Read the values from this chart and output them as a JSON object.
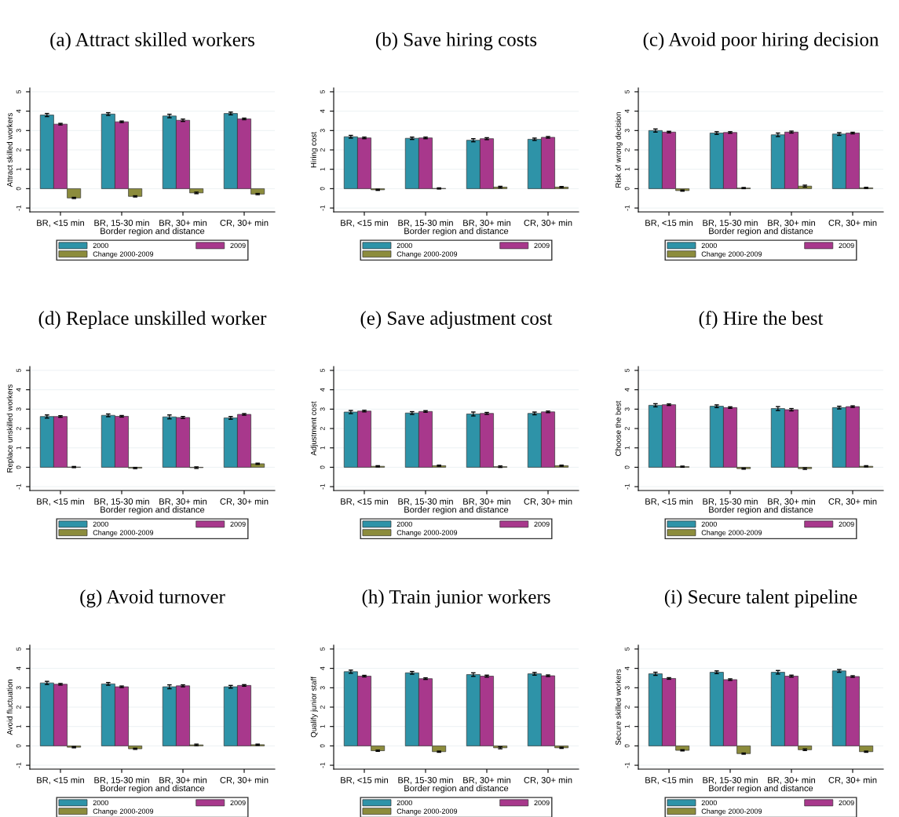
{
  "chart_data": [
    {
      "type": "bar",
      "title": "(a) Attract skilled workers",
      "xlabel": "Border region and distance",
      "ylabel": "Attract skilled workers",
      "categories": [
        "BR, <15 min",
        "BR, 15-30 min",
        "BR, 30+ min",
        "CR, 30+ min"
      ],
      "ylim": [
        -1.2,
        5.2
      ],
      "yticks": [
        -1,
        0,
        1,
        2,
        3,
        4,
        5
      ],
      "grid": "y",
      "legend": "bottom",
      "series": [
        {
          "name": "2000",
          "color": "#2e93a8",
          "values": [
            3.8,
            3.85,
            3.75,
            3.88
          ],
          "errors": [
            0.08,
            0.07,
            0.09,
            0.07
          ]
        },
        {
          "name": "2009",
          "color": "#a8388c",
          "values": [
            3.33,
            3.45,
            3.53,
            3.6
          ],
          "errors": [
            0.04,
            0.04,
            0.06,
            0.04
          ]
        },
        {
          "name": "Change 2000-2009",
          "color": "#8c8c3c",
          "values": [
            -0.48,
            -0.4,
            -0.22,
            -0.28
          ],
          "errors": [
            0.03,
            0.03,
            0.04,
            0.03
          ]
        }
      ]
    },
    {
      "type": "bar",
      "title": "(b) Save hiring costs",
      "xlabel": "Border region and distance",
      "ylabel": "Hiring cost",
      "categories": [
        "BR, <15 min",
        "BR, 15-30 min",
        "BR, 30+ min",
        "CR, 30+ min"
      ],
      "ylim": [
        -1.2,
        5.2
      ],
      "yticks": [
        -1,
        0,
        1,
        2,
        3,
        4,
        5
      ],
      "grid": "y",
      "legend": "bottom",
      "series": [
        {
          "name": "2000",
          "color": "#2e93a8",
          "values": [
            2.68,
            2.6,
            2.5,
            2.55
          ],
          "errors": [
            0.07,
            0.06,
            0.08,
            0.06
          ]
        },
        {
          "name": "2009",
          "color": "#a8388c",
          "values": [
            2.62,
            2.62,
            2.58,
            2.65
          ],
          "errors": [
            0.04,
            0.04,
            0.05,
            0.04
          ]
        },
        {
          "name": "Change 2000-2009",
          "color": "#8c8c3c",
          "values": [
            -0.06,
            0.01,
            0.08,
            0.08
          ],
          "errors": [
            0.03,
            0.03,
            0.04,
            0.03
          ]
        }
      ]
    },
    {
      "type": "bar",
      "title": "(c) Avoid poor hiring decision",
      "xlabel": "Border region and distance",
      "ylabel": "Risk of wrong decision",
      "categories": [
        "BR, <15 min",
        "BR, 15-30 min",
        "BR, 30+ min",
        "CR, 30+ min"
      ],
      "ylim": [
        -1.2,
        5.2
      ],
      "yticks": [
        -1,
        0,
        1,
        2,
        3,
        4,
        5
      ],
      "grid": "y",
      "legend": "bottom",
      "series": [
        {
          "name": "2000",
          "color": "#2e93a8",
          "values": [
            3.0,
            2.87,
            2.78,
            2.82
          ],
          "errors": [
            0.08,
            0.07,
            0.09,
            0.07
          ]
        },
        {
          "name": "2009",
          "color": "#a8388c",
          "values": [
            2.92,
            2.9,
            2.92,
            2.87
          ],
          "errors": [
            0.04,
            0.04,
            0.05,
            0.04
          ]
        },
        {
          "name": "Change 2000-2009",
          "color": "#8c8c3c",
          "values": [
            -0.1,
            0.03,
            0.13,
            0.04
          ],
          "errors": [
            0.03,
            0.03,
            0.05,
            0.03
          ]
        }
      ]
    },
    {
      "type": "bar",
      "title": "(d) Replace unskilled worker",
      "xlabel": "Border region and distance",
      "ylabel": "Replace unskilled workers",
      "categories": [
        "BR, <15 min",
        "BR, 15-30 min",
        "BR, 30+ min",
        "CR, 30+ min"
      ],
      "ylim": [
        -1.2,
        5.2
      ],
      "yticks": [
        -1,
        0,
        1,
        2,
        3,
        4,
        5
      ],
      "grid": "y",
      "legend": "bottom",
      "series": [
        {
          "name": "2000",
          "color": "#2e93a8",
          "values": [
            2.62,
            2.68,
            2.6,
            2.55
          ],
          "errors": [
            0.08,
            0.07,
            0.1,
            0.07
          ]
        },
        {
          "name": "2009",
          "color": "#a8388c",
          "values": [
            2.62,
            2.63,
            2.57,
            2.73
          ],
          "errors": [
            0.04,
            0.04,
            0.05,
            0.04
          ]
        },
        {
          "name": "Change 2000-2009",
          "color": "#8c8c3c",
          "values": [
            0.01,
            -0.04,
            -0.02,
            0.18
          ],
          "errors": [
            0.03,
            0.03,
            0.04,
            0.03
          ]
        }
      ]
    },
    {
      "type": "bar",
      "title": "(e) Save adjustment cost",
      "xlabel": "Border region and distance",
      "ylabel": "Adjustment cost",
      "categories": [
        "BR, <15 min",
        "BR, 15-30 min",
        "BR, 30+ min",
        "CR, 30+ min"
      ],
      "ylim": [
        -1.2,
        5.2
      ],
      "yticks": [
        -1,
        0,
        1,
        2,
        3,
        4,
        5
      ],
      "grid": "y",
      "legend": "bottom",
      "series": [
        {
          "name": "2000",
          "color": "#2e93a8",
          "values": [
            2.85,
            2.8,
            2.75,
            2.78
          ],
          "errors": [
            0.08,
            0.07,
            0.1,
            0.07
          ]
        },
        {
          "name": "2009",
          "color": "#a8388c",
          "values": [
            2.9,
            2.88,
            2.78,
            2.86
          ],
          "errors": [
            0.04,
            0.04,
            0.05,
            0.04
          ]
        },
        {
          "name": "Change 2000-2009",
          "color": "#8c8c3c",
          "values": [
            0.05,
            0.08,
            0.03,
            0.08
          ],
          "errors": [
            0.03,
            0.03,
            0.04,
            0.03
          ]
        }
      ]
    },
    {
      "type": "bar",
      "title": "(f) Hire the best",
      "xlabel": "Border region and distance",
      "ylabel": "Choose the best",
      "categories": [
        "BR, <15 min",
        "BR, 15-30 min",
        "BR, 30+ min",
        "CR, 30+ min"
      ],
      "ylim": [
        -1.2,
        5.2
      ],
      "yticks": [
        -1,
        0,
        1,
        2,
        3,
        4,
        5
      ],
      "grid": "y",
      "legend": "bottom",
      "series": [
        {
          "name": "2000",
          "color": "#2e93a8",
          "values": [
            3.2,
            3.15,
            3.03,
            3.08
          ],
          "errors": [
            0.08,
            0.07,
            0.1,
            0.07
          ]
        },
        {
          "name": "2009",
          "color": "#a8388c",
          "values": [
            3.23,
            3.08,
            2.97,
            3.13
          ],
          "errors": [
            0.04,
            0.04,
            0.06,
            0.04
          ]
        },
        {
          "name": "Change 2000-2009",
          "color": "#8c8c3c",
          "values": [
            0.03,
            -0.07,
            -0.07,
            0.05
          ],
          "errors": [
            0.03,
            0.03,
            0.04,
            0.03
          ]
        }
      ]
    },
    {
      "type": "bar",
      "title": "(g) Avoid turnover",
      "xlabel": "Border region and distance",
      "ylabel": "Avoid fluctuation",
      "categories": [
        "BR, <15 min",
        "BR, 15-30 min",
        "BR, 30+ min",
        "CR, 30+ min"
      ],
      "ylim": [
        -1.2,
        5.2
      ],
      "yticks": [
        -1,
        0,
        1,
        2,
        3,
        4,
        5
      ],
      "grid": "y",
      "legend": "bottom",
      "series": [
        {
          "name": "2000",
          "color": "#2e93a8",
          "values": [
            3.25,
            3.2,
            3.05,
            3.05
          ],
          "errors": [
            0.08,
            0.07,
            0.1,
            0.07
          ]
        },
        {
          "name": "2009",
          "color": "#a8388c",
          "values": [
            3.18,
            3.05,
            3.1,
            3.12
          ],
          "errors": [
            0.04,
            0.04,
            0.05,
            0.04
          ]
        },
        {
          "name": "Change 2000-2009",
          "color": "#8c8c3c",
          "values": [
            -0.07,
            -0.15,
            0.05,
            0.06
          ],
          "errors": [
            0.03,
            0.03,
            0.04,
            0.03
          ]
        }
      ]
    },
    {
      "type": "bar",
      "title": "(h) Train junior workers",
      "xlabel": "Border region and distance",
      "ylabel": "Qualify junior staff",
      "categories": [
        "BR, <15 min",
        "BR, 15-30 min",
        "BR, 30+ min",
        "CR, 30+ min"
      ],
      "ylim": [
        -1.2,
        5.2
      ],
      "yticks": [
        -1,
        0,
        1,
        2,
        3,
        4,
        5
      ],
      "grid": "y",
      "legend": "bottom",
      "series": [
        {
          "name": "2000",
          "color": "#2e93a8",
          "values": [
            3.83,
            3.77,
            3.68,
            3.72
          ],
          "errors": [
            0.08,
            0.07,
            0.09,
            0.07
          ]
        },
        {
          "name": "2009",
          "color": "#a8388c",
          "values": [
            3.6,
            3.47,
            3.6,
            3.62
          ],
          "errors": [
            0.04,
            0.04,
            0.05,
            0.04
          ]
        },
        {
          "name": "Change 2000-2009",
          "color": "#8c8c3c",
          "values": [
            -0.25,
            -0.3,
            -0.1,
            -0.1
          ],
          "errors": [
            0.03,
            0.03,
            0.05,
            0.03
          ]
        }
      ]
    },
    {
      "type": "bar",
      "title": "(i) Secure talent pipeline",
      "xlabel": "Border region and distance",
      "ylabel": "Secure skilled workers",
      "categories": [
        "BR, <15 min",
        "BR, 15-30 min",
        "BR, 30+ min",
        "CR, 30+ min"
      ],
      "ylim": [
        -1.2,
        5.2
      ],
      "yticks": [
        -1,
        0,
        1,
        2,
        3,
        4,
        5
      ],
      "grid": "y",
      "legend": "bottom",
      "series": [
        {
          "name": "2000",
          "color": "#2e93a8",
          "values": [
            3.72,
            3.8,
            3.8,
            3.87
          ],
          "errors": [
            0.08,
            0.07,
            0.09,
            0.07
          ]
        },
        {
          "name": "2009",
          "color": "#a8388c",
          "values": [
            3.48,
            3.42,
            3.6,
            3.58
          ],
          "errors": [
            0.04,
            0.04,
            0.05,
            0.04
          ]
        },
        {
          "name": "Change 2000-2009",
          "color": "#8c8c3c",
          "values": [
            -0.23,
            -0.4,
            -0.2,
            -0.3
          ],
          "errors": [
            0.03,
            0.03,
            0.04,
            0.03
          ]
        }
      ]
    }
  ]
}
